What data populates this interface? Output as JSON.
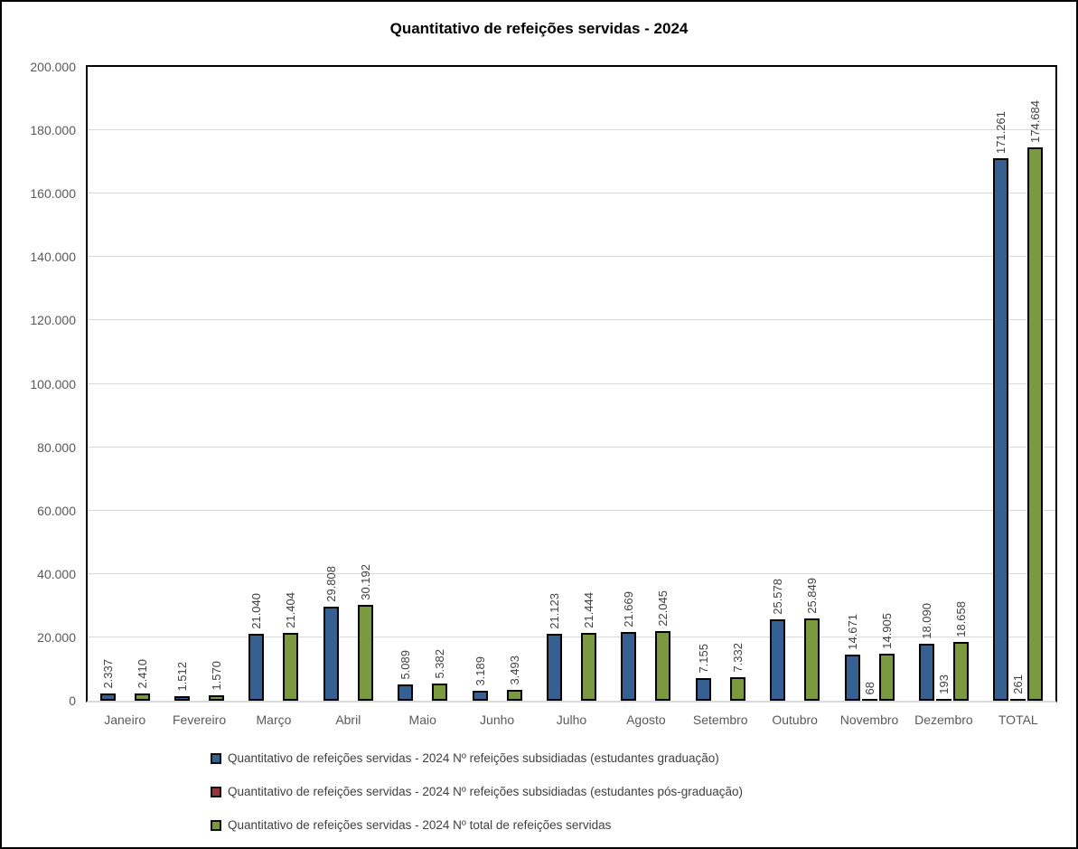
{
  "chart_data": {
    "type": "bar",
    "title": "Quantitativo de refeições servidas - 2024",
    "categories": [
      "Janeiro",
      "Fevereiro",
      "Março",
      "Abril",
      "Maio",
      "Junho",
      "Julho",
      "Agosto",
      "Setembro",
      "Outubro",
      "Novembro",
      "Dezembro",
      "TOTAL"
    ],
    "series": [
      {
        "name": "Quantitativo de refeições servidas - 2024 Nº refeições subsidiadas (estudantes graduação)",
        "color": "#366092",
        "values": [
          2337,
          1512,
          21040,
          29808,
          5089,
          3189,
          21123,
          21669,
          7155,
          25578,
          14671,
          18090,
          171261
        ],
        "labels": [
          "2.337",
          "1.512",
          "21.040",
          "29.808",
          "5.089",
          "3.189",
          "21.123",
          "21.669",
          "7.155",
          "25.578",
          "14.671",
          "18.090",
          "171.261"
        ]
      },
      {
        "name": "Quantitativo de refeições servidas - 2024 Nº refeições subsidiadas (estudantes pós-graduação)",
        "color": "#953735",
        "values": [
          0,
          0,
          0,
          0,
          0,
          0,
          0,
          0,
          0,
          0,
          68,
          193,
          261
        ],
        "labels": [
          "",
          "",
          "",
          "",
          "",
          "",
          "",
          "",
          "",
          "",
          "68",
          "193",
          "261"
        ]
      },
      {
        "name": "Quantitativo de refeições servidas - 2024 Nº total de refeições servidas",
        "color": "#7B993F",
        "values": [
          2410,
          1570,
          21404,
          30192,
          5382,
          3493,
          21444,
          22045,
          7332,
          25849,
          14905,
          18658,
          174684
        ],
        "labels": [
          "2.410",
          "1.570",
          "21.404",
          "30.192",
          "5.382",
          "3.493",
          "21.444",
          "22.045",
          "7.332",
          "25.849",
          "14.905",
          "18.658",
          "174.684"
        ]
      }
    ],
    "ylim": [
      0,
      200000
    ],
    "ytick_step": 20000,
    "ytick_labels": [
      "0",
      "20.000",
      "40.000",
      "60.000",
      "80.000",
      "100.000",
      "120.000",
      "140.000",
      "160.000",
      "180.000",
      "200.000"
    ],
    "grid": true,
    "legend_position": "bottom-left",
    "colors": {
      "grid": "#D9D9D9",
      "axis_text": "#595959",
      "value_label": "#404040",
      "plot_border": "#000000",
      "frame_border": "#000000",
      "background": "#FFFFFF"
    }
  }
}
